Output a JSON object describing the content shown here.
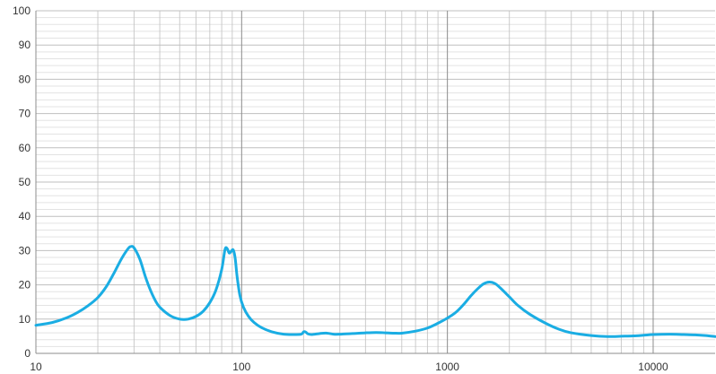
{
  "chart_data": {
    "type": "line",
    "title": "",
    "xlabel": "",
    "ylabel": "",
    "x_scale": "log",
    "xlim": [
      10,
      20000
    ],
    "ylim": [
      0,
      100
    ],
    "x_ticks": [
      10,
      100,
      1000,
      10000
    ],
    "x_tick_labels": [
      "10",
      "100",
      "1000",
      "10000"
    ],
    "y_ticks": [
      0,
      10,
      20,
      30,
      40,
      50,
      60,
      70,
      80,
      90,
      100
    ],
    "y_tick_labels": [
      "0",
      "10",
      "20",
      "30",
      "40",
      "50",
      "60",
      "70",
      "80",
      "90",
      "100"
    ],
    "grid": true,
    "legend": "none",
    "colors": {
      "line": "#1AADE3",
      "major_grid": "#bfbfbf",
      "minor_grid": "#e3e3e3",
      "axis": "#8c8c8c"
    },
    "series": [
      {
        "x": [
          10,
          12,
          14,
          16,
          18,
          20,
          22,
          24,
          26,
          28,
          29,
          30,
          32,
          34,
          36,
          38,
          40,
          45,
          50,
          55,
          60,
          65,
          70,
          75,
          80,
          83,
          85,
          87,
          89,
          91,
          93,
          95,
          98,
          102,
          108,
          115,
          125,
          140,
          160,
          180,
          195,
          200,
          205,
          210,
          220,
          240,
          260,
          280,
          300,
          350,
          400,
          450,
          500,
          550,
          600,
          700,
          800,
          900,
          1000,
          1100,
          1200,
          1300,
          1400,
          1500,
          1600,
          1700,
          1800,
          2000,
          2200,
          2500,
          3000,
          3500,
          4000,
          5000,
          6000,
          7000,
          8000,
          9000,
          10000,
          12000,
          14000,
          16000,
          18000,
          20000
        ],
        "y": [
          8.2,
          9.0,
          10.3,
          12.0,
          14.0,
          16.3,
          19.5,
          23.5,
          27.5,
          30.5,
          31.2,
          30.8,
          27.5,
          22.5,
          18.5,
          15.5,
          13.5,
          11.0,
          10.0,
          10.0,
          10.8,
          12.3,
          14.8,
          18.5,
          24.5,
          30.3,
          30.6,
          29.3,
          29.8,
          30.2,
          27.8,
          22.5,
          17.0,
          13.5,
          10.8,
          9.0,
          7.5,
          6.3,
          5.6,
          5.5,
          5.6,
          6.3,
          6.2,
          5.7,
          5.5,
          5.8,
          5.9,
          5.6,
          5.6,
          5.8,
          6.0,
          6.1,
          6.0,
          5.9,
          5.9,
          6.5,
          7.4,
          8.8,
          10.3,
          12.0,
          14.3,
          16.8,
          18.8,
          20.3,
          20.8,
          20.4,
          19.2,
          16.5,
          14.0,
          11.5,
          8.8,
          7.0,
          6.0,
          5.2,
          4.9,
          5.0,
          5.1,
          5.3,
          5.5,
          5.6,
          5.5,
          5.4,
          5.2,
          4.9
        ]
      }
    ]
  }
}
